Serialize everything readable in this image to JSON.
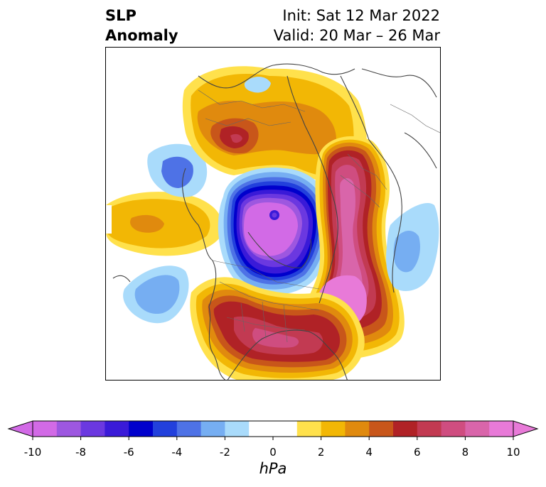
{
  "title": {
    "line1": "SLP",
    "line2": "Anomaly"
  },
  "init_label": "Init: Sat 12 Mar 2022",
  "valid_label": "Valid: 20 Mar – 26 Mar",
  "colorbar": {
    "unit": "hPa",
    "ticks": [
      "-10",
      "-8",
      "-6",
      "-4",
      "-2",
      "0",
      "2",
      "4",
      "6",
      "8",
      "10"
    ],
    "bins": [
      {
        "min": -10,
        "max": -9,
        "color": "#d26ae6"
      },
      {
        "min": -9,
        "max": -8,
        "color": "#9d57e0"
      },
      {
        "min": -8,
        "max": -7,
        "color": "#6b38e0"
      },
      {
        "min": -7,
        "max": -6,
        "color": "#3a1ad8"
      },
      {
        "min": -6,
        "max": -5,
        "color": "#0000cc"
      },
      {
        "min": -5,
        "max": -4,
        "color": "#2240dc"
      },
      {
        "min": -4,
        "max": -3,
        "color": "#4e72e6"
      },
      {
        "min": -3,
        "max": -2,
        "color": "#76aef2"
      },
      {
        "min": -2,
        "max": -1,
        "color": "#a9dbfb"
      },
      {
        "min": -1,
        "max": 1,
        "color": "#ffffff"
      },
      {
        "min": 1,
        "max": 2,
        "color": "#ffe14c"
      },
      {
        "min": 2,
        "max": 3,
        "color": "#f2b705"
      },
      {
        "min": 3,
        "max": 4,
        "color": "#e08a0e"
      },
      {
        "min": 4,
        "max": 5,
        "color": "#c8561a"
      },
      {
        "min": 5,
        "max": 6,
        "color": "#b02226"
      },
      {
        "min": 6,
        "max": 7,
        "color": "#c23a52"
      },
      {
        "min": 7,
        "max": 8,
        "color": "#cf4d80"
      },
      {
        "min": 8,
        "max": 9,
        "color": "#d965aa"
      },
      {
        "min": 9,
        "max": 10,
        "color": "#e87ad8"
      }
    ],
    "under_color": "#d26ae6",
    "over_color": "#e87ad8"
  }
}
